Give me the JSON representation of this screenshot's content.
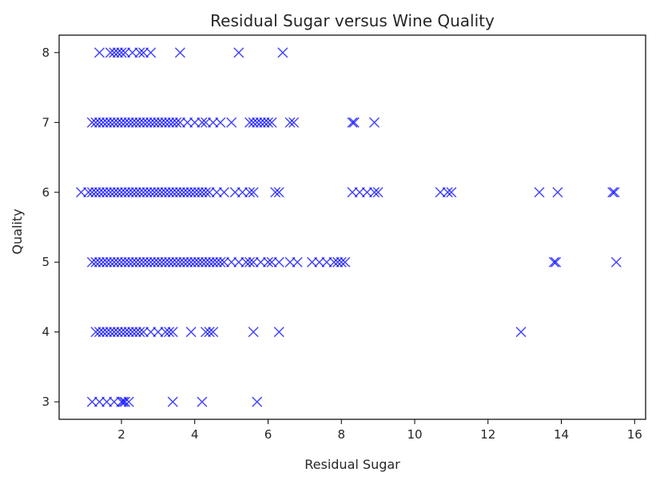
{
  "chart_data": {
    "type": "scatter",
    "title": "Residual Sugar versus Wine Quality",
    "xlabel": "Residual Sugar",
    "ylabel": "Quality",
    "xlim": [
      0.3,
      16.3
    ],
    "ylim": [
      2.75,
      8.25
    ],
    "xticks": [
      2,
      4,
      6,
      8,
      10,
      12,
      14,
      16
    ],
    "yticks": [
      3,
      4,
      5,
      6,
      7,
      8
    ],
    "grid": false,
    "legend": "none",
    "marker": "x",
    "color": "#0000ff",
    "series": [
      {
        "points": [
          [
            1.2,
            3
          ],
          [
            1.4,
            3
          ],
          [
            1.6,
            3
          ],
          [
            1.8,
            3
          ],
          [
            2.0,
            3
          ],
          [
            2.05,
            3
          ],
          [
            2.1,
            3
          ],
          [
            2.2,
            3
          ],
          [
            3.4,
            3
          ],
          [
            4.2,
            3
          ],
          [
            5.7,
            3
          ],
          [
            1.3,
            4
          ],
          [
            1.4,
            4
          ],
          [
            1.5,
            4
          ],
          [
            1.6,
            4
          ],
          [
            1.7,
            4
          ],
          [
            1.8,
            4
          ],
          [
            1.9,
            4
          ],
          [
            2.0,
            4
          ],
          [
            2.1,
            4
          ],
          [
            2.2,
            4
          ],
          [
            2.3,
            4
          ],
          [
            2.4,
            4
          ],
          [
            2.5,
            4
          ],
          [
            2.6,
            4
          ],
          [
            2.8,
            4
          ],
          [
            3.0,
            4
          ],
          [
            3.2,
            4
          ],
          [
            3.3,
            4
          ],
          [
            3.4,
            4
          ],
          [
            3.9,
            4
          ],
          [
            4.3,
            4
          ],
          [
            4.4,
            4
          ],
          [
            4.5,
            4
          ],
          [
            5.6,
            4
          ],
          [
            6.3,
            4
          ],
          [
            12.9,
            4
          ],
          [
            1.2,
            5
          ],
          [
            1.3,
            5
          ],
          [
            1.4,
            5
          ],
          [
            1.5,
            5
          ],
          [
            1.6,
            5
          ],
          [
            1.7,
            5
          ],
          [
            1.8,
            5
          ],
          [
            1.9,
            5
          ],
          [
            2.0,
            5
          ],
          [
            2.1,
            5
          ],
          [
            2.2,
            5
          ],
          [
            2.3,
            5
          ],
          [
            2.4,
            5
          ],
          [
            2.5,
            5
          ],
          [
            2.6,
            5
          ],
          [
            2.7,
            5
          ],
          [
            2.8,
            5
          ],
          [
            2.9,
            5
          ],
          [
            3.0,
            5
          ],
          [
            3.1,
            5
          ],
          [
            3.2,
            5
          ],
          [
            3.3,
            5
          ],
          [
            3.4,
            5
          ],
          [
            3.5,
            5
          ],
          [
            3.6,
            5
          ],
          [
            3.7,
            5
          ],
          [
            3.8,
            5
          ],
          [
            3.9,
            5
          ],
          [
            4.0,
            5
          ],
          [
            4.1,
            5
          ],
          [
            4.2,
            5
          ],
          [
            4.3,
            5
          ],
          [
            4.4,
            5
          ],
          [
            4.5,
            5
          ],
          [
            4.6,
            5
          ],
          [
            4.7,
            5
          ],
          [
            4.8,
            5
          ],
          [
            5.0,
            5
          ],
          [
            5.2,
            5
          ],
          [
            5.4,
            5
          ],
          [
            5.5,
            5
          ],
          [
            5.6,
            5
          ],
          [
            5.8,
            5
          ],
          [
            6.0,
            5
          ],
          [
            6.1,
            5
          ],
          [
            6.3,
            5
          ],
          [
            6.6,
            5
          ],
          [
            6.8,
            5
          ],
          [
            7.2,
            5
          ],
          [
            7.4,
            5
          ],
          [
            7.6,
            5
          ],
          [
            7.8,
            5
          ],
          [
            7.9,
            5
          ],
          [
            8.0,
            5
          ],
          [
            8.1,
            5
          ],
          [
            13.8,
            5
          ],
          [
            13.85,
            5
          ],
          [
            15.5,
            5
          ],
          [
            0.9,
            6
          ],
          [
            1.1,
            6
          ],
          [
            1.2,
            6
          ],
          [
            1.3,
            6
          ],
          [
            1.4,
            6
          ],
          [
            1.5,
            6
          ],
          [
            1.6,
            6
          ],
          [
            1.7,
            6
          ],
          [
            1.8,
            6
          ],
          [
            1.9,
            6
          ],
          [
            2.0,
            6
          ],
          [
            2.1,
            6
          ],
          [
            2.2,
            6
          ],
          [
            2.3,
            6
          ],
          [
            2.4,
            6
          ],
          [
            2.5,
            6
          ],
          [
            2.6,
            6
          ],
          [
            2.7,
            6
          ],
          [
            2.8,
            6
          ],
          [
            2.9,
            6
          ],
          [
            3.0,
            6
          ],
          [
            3.1,
            6
          ],
          [
            3.2,
            6
          ],
          [
            3.3,
            6
          ],
          [
            3.4,
            6
          ],
          [
            3.5,
            6
          ],
          [
            3.6,
            6
          ],
          [
            3.7,
            6
          ],
          [
            3.8,
            6
          ],
          [
            3.9,
            6
          ],
          [
            4.0,
            6
          ],
          [
            4.1,
            6
          ],
          [
            4.2,
            6
          ],
          [
            4.3,
            6
          ],
          [
            4.4,
            6
          ],
          [
            4.6,
            6
          ],
          [
            4.8,
            6
          ],
          [
            5.1,
            6
          ],
          [
            5.3,
            6
          ],
          [
            5.5,
            6
          ],
          [
            5.6,
            6
          ],
          [
            6.2,
            6
          ],
          [
            6.3,
            6
          ],
          [
            8.3,
            6
          ],
          [
            8.5,
            6
          ],
          [
            8.7,
            6
          ],
          [
            8.9,
            6
          ],
          [
            9.0,
            6
          ],
          [
            10.7,
            6
          ],
          [
            10.9,
            6
          ],
          [
            11.0,
            6
          ],
          [
            13.4,
            6
          ],
          [
            13.9,
            6
          ],
          [
            15.4,
            6
          ],
          [
            15.45,
            6
          ],
          [
            1.2,
            7
          ],
          [
            1.3,
            7
          ],
          [
            1.4,
            7
          ],
          [
            1.5,
            7
          ],
          [
            1.6,
            7
          ],
          [
            1.7,
            7
          ],
          [
            1.8,
            7
          ],
          [
            1.9,
            7
          ],
          [
            2.0,
            7
          ],
          [
            2.1,
            7
          ],
          [
            2.2,
            7
          ],
          [
            2.3,
            7
          ],
          [
            2.4,
            7
          ],
          [
            2.5,
            7
          ],
          [
            2.6,
            7
          ],
          [
            2.7,
            7
          ],
          [
            2.8,
            7
          ],
          [
            2.9,
            7
          ],
          [
            3.0,
            7
          ],
          [
            3.1,
            7
          ],
          [
            3.2,
            7
          ],
          [
            3.3,
            7
          ],
          [
            3.4,
            7
          ],
          [
            3.5,
            7
          ],
          [
            3.6,
            7
          ],
          [
            3.8,
            7
          ],
          [
            4.0,
            7
          ],
          [
            4.2,
            7
          ],
          [
            4.3,
            7
          ],
          [
            4.5,
            7
          ],
          [
            4.7,
            7
          ],
          [
            5.0,
            7
          ],
          [
            5.5,
            7
          ],
          [
            5.6,
            7
          ],
          [
            5.7,
            7
          ],
          [
            5.8,
            7
          ],
          [
            5.9,
            7
          ],
          [
            6.0,
            7
          ],
          [
            6.1,
            7
          ],
          [
            6.6,
            7
          ],
          [
            6.7,
            7
          ],
          [
            8.3,
            7
          ],
          [
            8.35,
            7
          ],
          [
            8.9,
            7
          ],
          [
            1.4,
            8
          ],
          [
            1.7,
            8
          ],
          [
            1.8,
            8
          ],
          [
            1.9,
            8
          ],
          [
            2.0,
            8
          ],
          [
            2.1,
            8
          ],
          [
            2.3,
            8
          ],
          [
            2.5,
            8
          ],
          [
            2.6,
            8
          ],
          [
            2.8,
            8
          ],
          [
            3.6,
            8
          ],
          [
            5.2,
            8
          ],
          [
            6.4,
            8
          ]
        ]
      }
    ]
  }
}
